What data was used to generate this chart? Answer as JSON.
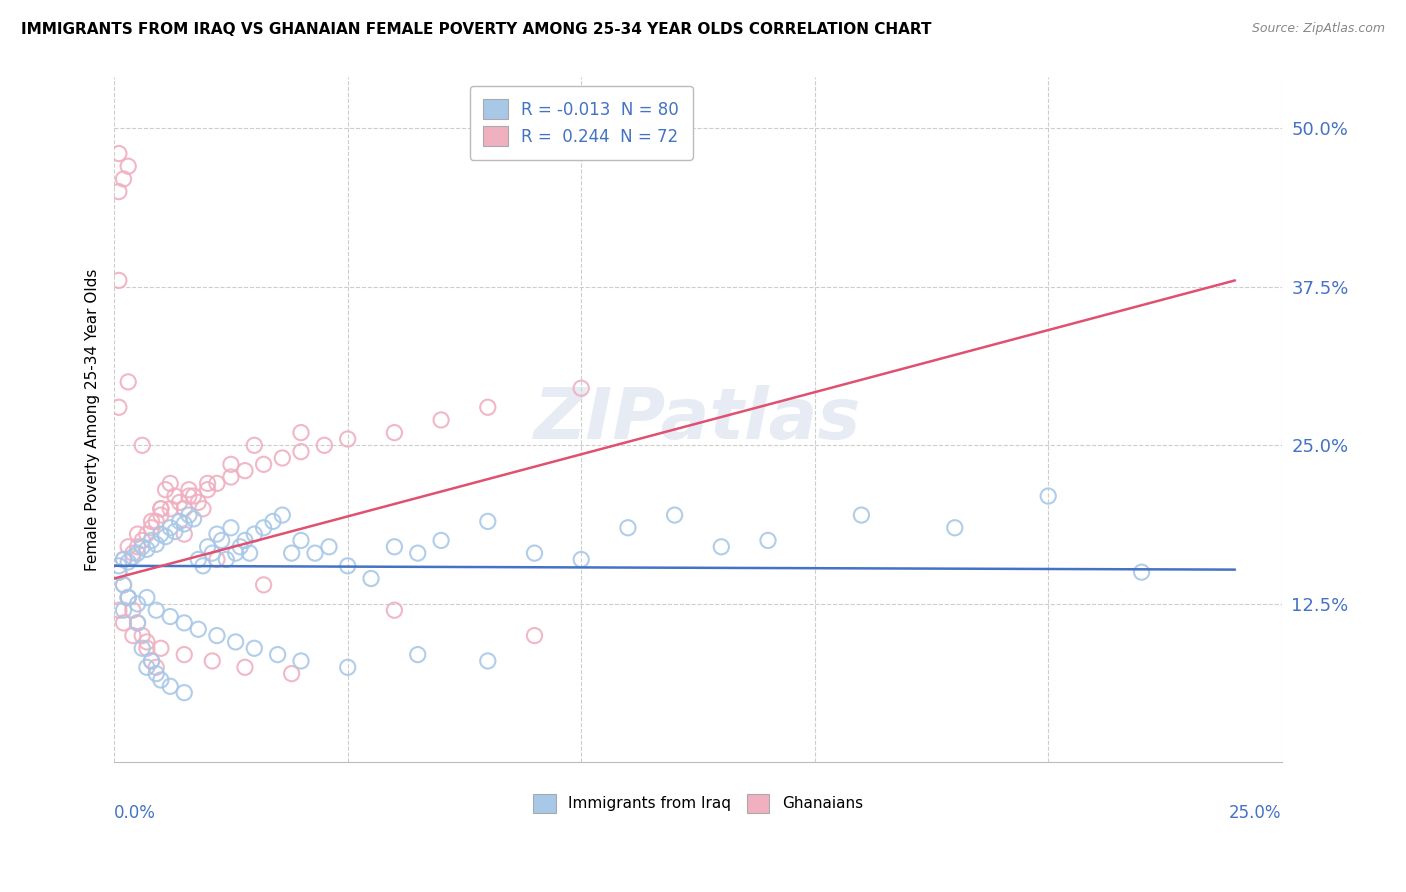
{
  "title": "IMMIGRANTS FROM IRAQ VS GHANAIAN FEMALE POVERTY AMONG 25-34 YEAR OLDS CORRELATION CHART",
  "source": "Source: ZipAtlas.com",
  "ylabel": "Female Poverty Among 25-34 Year Olds",
  "ytick_vals": [
    0.125,
    0.25,
    0.375,
    0.5
  ],
  "ytick_labels": [
    "12.5%",
    "25.0%",
    "37.5%",
    "50.0%"
  ],
  "xlim": [
    0.0,
    0.25
  ],
  "ylim": [
    0.0,
    0.54
  ],
  "legend_r1": "R = -0.013  N = 80",
  "legend_r2": "R =  0.244  N = 72",
  "color_iraq": "#a8c8e8",
  "color_ghana": "#f0b0c0",
  "trendline_iraq_color": "#4472c4",
  "trendline_ghana_color": "#e05070",
  "watermark": "ZIPatlas",
  "iraq_x": [
    0.001,
    0.002,
    0.002,
    0.003,
    0.003,
    0.004,
    0.005,
    0.005,
    0.006,
    0.006,
    0.007,
    0.007,
    0.008,
    0.008,
    0.009,
    0.009,
    0.01,
    0.01,
    0.011,
    0.012,
    0.012,
    0.013,
    0.014,
    0.015,
    0.015,
    0.016,
    0.017,
    0.018,
    0.019,
    0.02,
    0.021,
    0.022,
    0.023,
    0.024,
    0.025,
    0.026,
    0.027,
    0.028,
    0.029,
    0.03,
    0.032,
    0.034,
    0.036,
    0.038,
    0.04,
    0.043,
    0.046,
    0.05,
    0.055,
    0.06,
    0.065,
    0.07,
    0.08,
    0.09,
    0.1,
    0.11,
    0.12,
    0.13,
    0.14,
    0.16,
    0.18,
    0.2,
    0.22,
    0.001,
    0.002,
    0.003,
    0.005,
    0.007,
    0.009,
    0.012,
    0.015,
    0.018,
    0.022,
    0.026,
    0.03,
    0.035,
    0.04,
    0.05,
    0.065,
    0.08
  ],
  "iraq_y": [
    0.155,
    0.16,
    0.12,
    0.158,
    0.13,
    0.162,
    0.165,
    0.11,
    0.17,
    0.09,
    0.168,
    0.075,
    0.175,
    0.08,
    0.172,
    0.07,
    0.18,
    0.065,
    0.178,
    0.185,
    0.06,
    0.182,
    0.19,
    0.188,
    0.055,
    0.195,
    0.192,
    0.16,
    0.155,
    0.17,
    0.165,
    0.18,
    0.175,
    0.16,
    0.185,
    0.165,
    0.17,
    0.175,
    0.165,
    0.18,
    0.185,
    0.19,
    0.195,
    0.165,
    0.175,
    0.165,
    0.17,
    0.155,
    0.145,
    0.17,
    0.165,
    0.175,
    0.19,
    0.165,
    0.16,
    0.185,
    0.195,
    0.17,
    0.175,
    0.195,
    0.185,
    0.21,
    0.15,
    0.15,
    0.14,
    0.13,
    0.125,
    0.13,
    0.12,
    0.115,
    0.11,
    0.105,
    0.1,
    0.095,
    0.09,
    0.085,
    0.08,
    0.075,
    0.085,
    0.08
  ],
  "ghana_x": [
    0.001,
    0.001,
    0.001,
    0.002,
    0.002,
    0.003,
    0.003,
    0.004,
    0.004,
    0.005,
    0.005,
    0.006,
    0.006,
    0.007,
    0.007,
    0.008,
    0.008,
    0.009,
    0.009,
    0.01,
    0.01,
    0.011,
    0.012,
    0.013,
    0.014,
    0.015,
    0.016,
    0.017,
    0.018,
    0.019,
    0.02,
    0.022,
    0.025,
    0.028,
    0.032,
    0.036,
    0.04,
    0.045,
    0.05,
    0.06,
    0.07,
    0.08,
    0.1,
    0.001,
    0.002,
    0.003,
    0.005,
    0.008,
    0.012,
    0.016,
    0.02,
    0.025,
    0.03,
    0.04,
    0.001,
    0.002,
    0.004,
    0.007,
    0.01,
    0.015,
    0.021,
    0.028,
    0.038,
    0.001,
    0.003,
    0.006,
    0.01,
    0.015,
    0.022,
    0.032,
    0.06,
    0.09
  ],
  "ghana_y": [
    0.45,
    0.48,
    0.15,
    0.46,
    0.14,
    0.47,
    0.13,
    0.165,
    0.12,
    0.17,
    0.11,
    0.175,
    0.1,
    0.18,
    0.09,
    0.185,
    0.08,
    0.19,
    0.075,
    0.195,
    0.2,
    0.215,
    0.22,
    0.21,
    0.205,
    0.2,
    0.215,
    0.21,
    0.205,
    0.2,
    0.215,
    0.22,
    0.225,
    0.23,
    0.235,
    0.24,
    0.245,
    0.25,
    0.255,
    0.26,
    0.27,
    0.28,
    0.295,
    0.38,
    0.16,
    0.17,
    0.18,
    0.19,
    0.2,
    0.21,
    0.22,
    0.235,
    0.25,
    0.26,
    0.12,
    0.11,
    0.1,
    0.095,
    0.09,
    0.085,
    0.08,
    0.075,
    0.07,
    0.28,
    0.3,
    0.25,
    0.2,
    0.18,
    0.16,
    0.14,
    0.12,
    0.1
  ],
  "iraq_trend_x": [
    0.0,
    0.24
  ],
  "iraq_trend_y": [
    0.155,
    0.152
  ],
  "ghana_trend_x": [
    0.0,
    0.24
  ],
  "ghana_trend_y": [
    0.145,
    0.38
  ]
}
